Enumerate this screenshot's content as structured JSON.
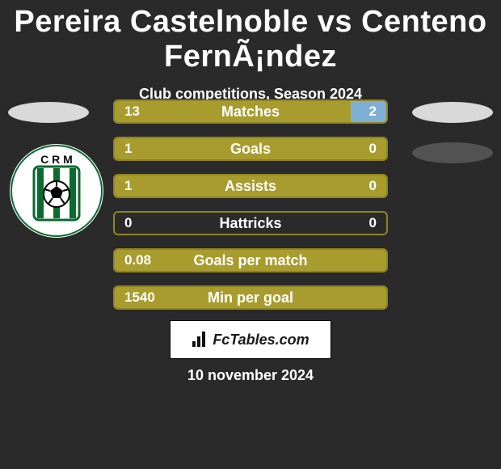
{
  "title": "Pereira Castelnoble vs Centeno FernÃ¡ndez",
  "subtitle": "Club competitions, Season 2024",
  "colors": {
    "bar_main": "#a89c2e",
    "bar_border": "#8f8420",
    "bar_alt": "#7eb0d6",
    "text": "#ffffff",
    "background": "#2a2a2a"
  },
  "side_ellipses": {
    "left1": {
      "color": "#d9d9d9"
    },
    "right1": {
      "color": "#d9d9d9"
    },
    "right2": {
      "color": "#525252"
    }
  },
  "club_badge": {
    "letters": "C R M"
  },
  "bars": [
    {
      "label": "Matches",
      "left": "13",
      "right": "2",
      "left_pct": 87,
      "right_pct": 13,
      "right_color": "alt",
      "left_fill": true
    },
    {
      "label": "Goals",
      "left": "1",
      "right": "0",
      "left_pct": 100,
      "right_pct": 0,
      "right_color": "alt",
      "left_fill": true
    },
    {
      "label": "Assists",
      "left": "1",
      "right": "0",
      "left_pct": 100,
      "right_pct": 0,
      "right_color": "alt",
      "left_fill": true
    },
    {
      "label": "Hattricks",
      "left": "0",
      "right": "0",
      "left_pct": 0,
      "right_pct": 0,
      "right_color": "none",
      "left_fill": false
    },
    {
      "label": "Goals per match",
      "left": "0.08",
      "right": "",
      "left_pct": 100,
      "right_pct": 0,
      "right_color": "none",
      "left_fill": true
    },
    {
      "label": "Min per goal",
      "left": "1540",
      "right": "",
      "left_pct": 100,
      "right_pct": 0,
      "right_color": "none",
      "left_fill": true
    }
  ],
  "footer_brand": "FcTables.com",
  "footer_date": "10 november 2024"
}
